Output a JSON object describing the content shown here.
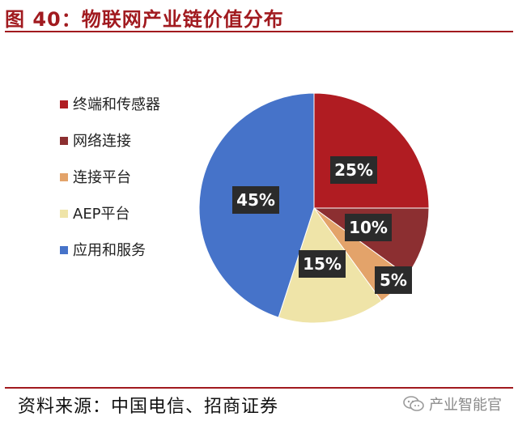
{
  "figure": {
    "title": "图 40：物联网产业链价值分布",
    "source": "资料来源：中国电信、招商证券",
    "watermark": "产业智能官"
  },
  "icons": {
    "watermark_icon": "wechat-icon"
  },
  "chart_data": {
    "type": "pie",
    "title": "",
    "slices": [
      {
        "label": "终端和传感器",
        "value": 25,
        "display": "25%",
        "color": "#b01c22"
      },
      {
        "label": "网络连接",
        "value": 10,
        "display": "10%",
        "color": "#8c2f31"
      },
      {
        "label": "连接平台",
        "value": 5,
        "display": "5%",
        "color": "#e3a36a"
      },
      {
        "label": "AEP平台",
        "value": 15,
        "display": "15%",
        "color": "#efe4a8"
      },
      {
        "label": "应用和服务",
        "value": 45,
        "display": "45%",
        "color": "#4673c9"
      }
    ],
    "start_angle_deg": 0,
    "direction": "clockwise",
    "legend_position": "left"
  }
}
